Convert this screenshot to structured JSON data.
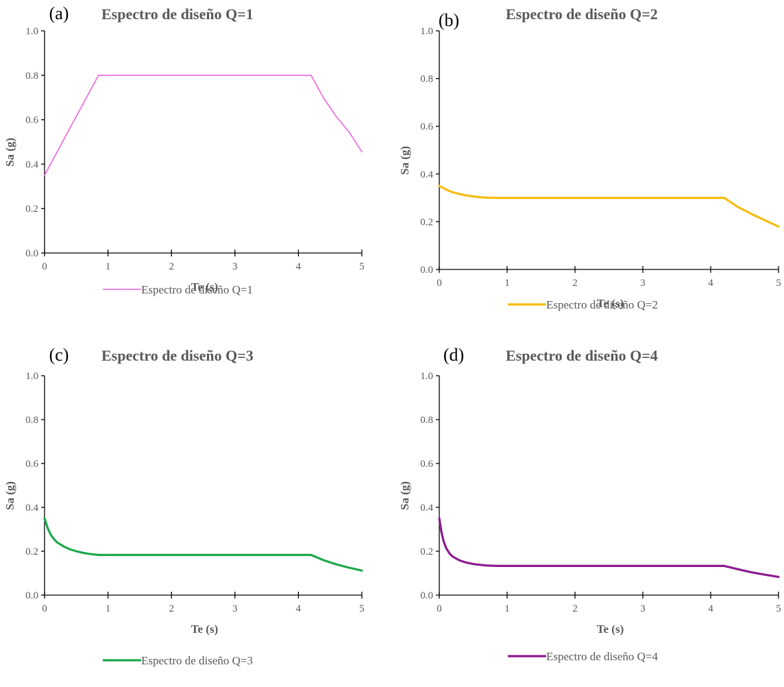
{
  "chart_data": [
    {
      "type": "line",
      "panel": "(a)",
      "title": "Espectro de diseño Q=1",
      "xlabel": "Te (s)",
      "ylabel": "Sa (g)",
      "xlim": [
        0,
        5
      ],
      "ylim": [
        0,
        1.0
      ],
      "xticks": [
        "0",
        "1",
        "2",
        "3",
        "4",
        "5"
      ],
      "yticks": [
        "0.0",
        "0.2",
        "0.4",
        "0.6",
        "0.8",
        "1.0"
      ],
      "grid": false,
      "legend_position": "bottom-center",
      "series": [
        {
          "name": "Espectro de diseño Q=1",
          "color": "#f062e0",
          "x": [
            0,
            0.2,
            0.4,
            0.6,
            0.85,
            1.5,
            2.0,
            2.5,
            3.0,
            3.5,
            4.0,
            4.2,
            4.4,
            4.6,
            4.8,
            5.0
          ],
          "y": [
            0.35,
            0.456,
            0.562,
            0.668,
            0.8,
            0.8,
            0.8,
            0.8,
            0.8,
            0.8,
            0.8,
            0.8,
            0.696,
            0.613,
            0.544,
            0.455
          ]
        }
      ]
    },
    {
      "type": "line",
      "panel": "(b)",
      "title": "Espectro de diseño Q=2",
      "xlabel": "Te (s)",
      "ylabel": "Sa (g)",
      "xlim": [
        0,
        5
      ],
      "ylim": [
        0,
        1.0
      ],
      "xticks": [
        "0",
        "1",
        "2",
        "3",
        "4",
        "5"
      ],
      "yticks": [
        "0.0",
        "0.2",
        "0.4",
        "0.6",
        "0.8",
        "1.0"
      ],
      "grid": false,
      "legend_position": "bottom-center",
      "series": [
        {
          "name": "Espectro de diseño Q=2",
          "color": "#f5bd12",
          "x": [
            0,
            0.1,
            0.2,
            0.3,
            0.4,
            0.5,
            0.6,
            0.7,
            0.85,
            1.5,
            2.5,
            3.5,
            4.2,
            4.4,
            4.6,
            4.8,
            5.0
          ],
          "y": [
            0.35,
            0.335,
            0.323,
            0.316,
            0.31,
            0.306,
            0.303,
            0.301,
            0.3,
            0.3,
            0.3,
            0.3,
            0.3,
            0.262,
            0.233,
            0.206,
            0.18
          ]
        }
      ]
    },
    {
      "type": "line",
      "panel": "(c)",
      "title": "Espectro de diseño Q=3",
      "xlabel": "Te (s)",
      "ylabel": "Sa (g)",
      "xlim": [
        0,
        5
      ],
      "ylim": [
        0,
        1.0
      ],
      "xticks": [
        "0",
        "1",
        "2",
        "3",
        "4",
        "5"
      ],
      "yticks": [
        "0.0",
        "0.2",
        "0.4",
        "0.6",
        "0.8",
        "1.0"
      ],
      "grid": false,
      "legend_position": "bottom-center",
      "series": [
        {
          "name": "Espectro de diseño Q=3",
          "color": "#1ea84a",
          "x": [
            0,
            0.05,
            0.1,
            0.15,
            0.2,
            0.3,
            0.4,
            0.5,
            0.6,
            0.7,
            0.85,
            1.5,
            2.5,
            3.5,
            4.2,
            4.4,
            4.6,
            4.8,
            5.0
          ],
          "y": [
            0.35,
            0.305,
            0.274,
            0.255,
            0.24,
            0.222,
            0.209,
            0.2,
            0.193,
            0.188,
            0.183,
            0.183,
            0.183,
            0.183,
            0.183,
            0.159,
            0.14,
            0.125,
            0.112
          ]
        }
      ]
    },
    {
      "type": "line",
      "panel": "(d)",
      "title": "Espectro de diseño Q=4",
      "xlabel": "Te (s)",
      "ylabel": "Sa (g)",
      "xlim": [
        0,
        5
      ],
      "ylim": [
        0,
        1.0
      ],
      "xticks": [
        "0",
        "1",
        "2",
        "3",
        "4",
        "5"
      ],
      "yticks": [
        "0.0",
        "0.2",
        "0.4",
        "0.6",
        "0.8",
        "1.0"
      ],
      "grid": false,
      "legend_position": "bottom-center",
      "series": [
        {
          "name": "Espectro de diseño Q=4",
          "color": "#8c1a8f",
          "x": [
            0,
            0.03,
            0.06,
            0.1,
            0.15,
            0.2,
            0.3,
            0.4,
            0.5,
            0.6,
            0.7,
            0.85,
            1.5,
            2.5,
            3.5,
            4.2,
            4.4,
            4.6,
            4.8,
            5.0
          ],
          "y": [
            0.35,
            0.29,
            0.25,
            0.215,
            0.19,
            0.175,
            0.158,
            0.148,
            0.142,
            0.138,
            0.135,
            0.133,
            0.133,
            0.133,
            0.133,
            0.133,
            0.118,
            0.104,
            0.093,
            0.083
          ]
        }
      ]
    }
  ]
}
